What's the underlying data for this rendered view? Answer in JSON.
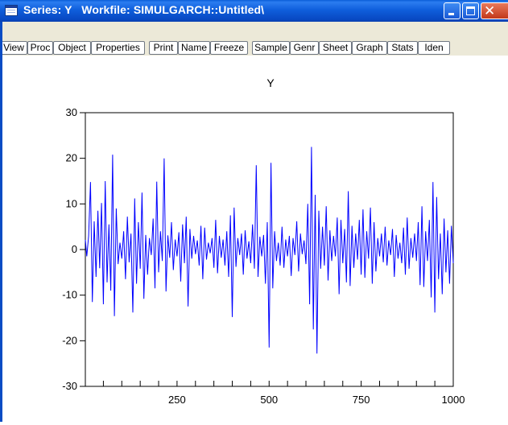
{
  "window": {
    "title": "Series: Y   Workfile: SIMULGARCH::Untitled\\"
  },
  "toolbar": {
    "buttons": [
      "View",
      "Proc",
      "Object",
      "Properties",
      "Print",
      "Name",
      "Freeze",
      "Sample",
      "Genr",
      "Sheet",
      "Graph",
      "Stats",
      "Iden"
    ]
  },
  "colors": {
    "series_line": "#0000ff",
    "titlebar": "#0a52d4",
    "toolbar_bg": "#ece9d8"
  },
  "chart_data": {
    "type": "line",
    "title": "Y",
    "xlabel": "",
    "ylabel": "",
    "xlim": [
      1,
      1000
    ],
    "ylim": [
      -30,
      30
    ],
    "x_ticks": [
      250,
      500,
      750,
      1000
    ],
    "y_ticks": [
      30,
      20,
      10,
      0,
      -10,
      -20,
      -30
    ],
    "grid": false,
    "legend": "none",
    "series": [
      {
        "x": [
          1,
          5,
          10,
          15,
          20,
          25,
          30,
          35,
          40,
          45,
          50,
          55,
          60,
          65,
          70,
          75,
          80,
          85,
          90,
          95,
          100,
          105,
          110,
          115,
          120,
          125,
          130,
          135,
          140,
          145,
          150,
          155,
          160,
          165,
          170,
          175,
          180,
          185,
          190,
          195,
          200,
          205,
          210,
          215,
          220,
          225,
          230,
          235,
          240,
          245,
          250,
          255,
          260,
          265,
          270,
          275,
          280,
          285,
          290,
          295,
          300,
          305,
          310,
          315,
          320,
          325,
          330,
          335,
          340,
          345,
          350,
          355,
          360,
          365,
          370,
          375,
          380,
          385,
          390,
          395,
          400,
          405,
          410,
          415,
          420,
          425,
          430,
          435,
          440,
          445,
          450,
          455,
          460,
          465,
          470,
          475,
          480,
          485,
          490,
          495,
          500,
          505,
          510,
          515,
          520,
          525,
          530,
          535,
          540,
          545,
          550,
          555,
          560,
          565,
          570,
          575,
          580,
          585,
          590,
          595,
          600,
          605,
          610,
          615,
          620,
          625,
          630,
          635,
          640,
          645,
          650,
          655,
          660,
          665,
          670,
          675,
          680,
          685,
          690,
          695,
          700,
          705,
          710,
          715,
          720,
          725,
          730,
          735,
          740,
          745,
          750,
          755,
          760,
          765,
          770,
          775,
          780,
          785,
          790,
          795,
          800,
          805,
          810,
          815,
          820,
          825,
          830,
          835,
          840,
          845,
          850,
          855,
          860,
          865,
          870,
          875,
          880,
          885,
          890,
          895,
          900,
          905,
          910,
          915,
          920,
          925,
          930,
          935,
          940,
          945,
          950,
          955,
          960,
          965,
          970,
          975,
          980,
          985,
          990,
          995,
          1000
        ],
        "values": [
          2.1,
          -1.5,
          3.0,
          14.8,
          -11.5,
          6.2,
          -6.0,
          8.5,
          -4.1,
          10.2,
          -12.0,
          15.0,
          -7.2,
          5.5,
          -9.0,
          20.8,
          -14.6,
          9.0,
          -3.2,
          1.5,
          -2.0,
          4.0,
          -6.5,
          7.2,
          -2.8,
          3.5,
          -13.8,
          11.2,
          -7.5,
          6.0,
          -4.2,
          12.5,
          -10.8,
          3.2,
          -5.5,
          2.5,
          -1.2,
          6.8,
          -8.5,
          14.9,
          -5.0,
          4.0,
          -2.5,
          20.0,
          -9.2,
          3.1,
          -1.8,
          6.0,
          -4.5,
          2.2,
          -1.5,
          3.8,
          -7.0,
          5.5,
          -3.0,
          7.2,
          -12.5,
          4.5,
          -2.0,
          3.0,
          -1.0,
          2.0,
          -3.5,
          5.2,
          -6.5,
          4.8,
          -2.2,
          1.5,
          -0.8,
          2.5,
          -4.0,
          6.5,
          -5.2,
          3.0,
          -1.8,
          2.2,
          -3.5,
          4.0,
          -6.0,
          7.5,
          -14.8,
          9.2,
          -3.8,
          2.5,
          -1.2,
          3.5,
          -5.5,
          4.2,
          -2.0,
          1.8,
          -3.0,
          5.5,
          -4.2,
          18.5,
          -6.0,
          2.8,
          -1.5,
          3.2,
          -7.5,
          6.0,
          -21.5,
          19.0,
          -8.5,
          4.0,
          -2.5,
          1.5,
          -3.5,
          5.0,
          -4.0,
          2.2,
          -1.5,
          3.0,
          -5.8,
          2.5,
          -1.2,
          6.2,
          -4.8,
          3.5,
          -1.0,
          2.0,
          -3.2,
          10.0,
          -12.0,
          22.5,
          -17.5,
          12.0,
          -22.8,
          8.5,
          -4.2,
          5.0,
          -3.5,
          9.5,
          -6.8,
          4.2,
          -2.5,
          3.0,
          -1.5,
          7.0,
          -9.8,
          6.5,
          -3.0,
          4.5,
          -7.2,
          12.8,
          -8.0,
          5.2,
          -4.0,
          3.5,
          -2.2,
          6.5,
          -5.5,
          8.8,
          -6.2,
          4.0,
          -2.0,
          9.2,
          -7.5,
          6.0,
          -4.8,
          2.5,
          -1.5,
          3.5,
          -2.8,
          5.0,
          -3.5,
          2.0,
          -1.2,
          4.5,
          -6.0,
          3.2,
          -2.0,
          1.5,
          -3.0,
          4.8,
          -5.5,
          7.0,
          -4.2,
          2.5,
          -1.8,
          3.5,
          -2.5,
          6.0,
          -7.8,
          9.5,
          -8.2,
          4.0,
          -2.5,
          6.5,
          -10.5,
          14.8,
          -13.8,
          11.5,
          -6.5,
          3.5,
          -9.8,
          6.8,
          -5.0,
          4.2,
          -7.5,
          5.2,
          -3.0
        ]
      }
    ]
  }
}
